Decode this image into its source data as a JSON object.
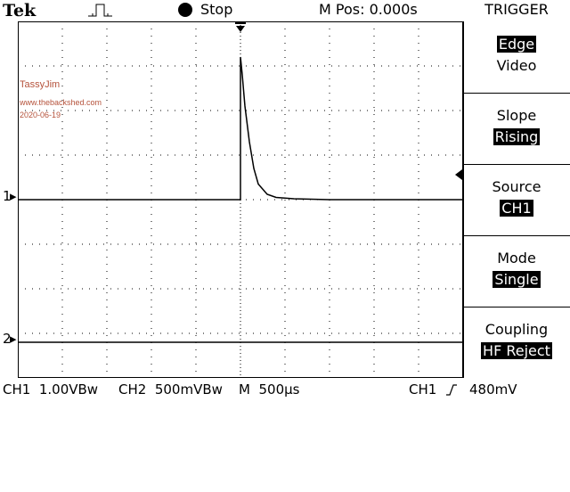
{
  "header": {
    "brand": "Tek",
    "acquisition_icon": "pulse-icon",
    "run_state": "Stop",
    "horizontal_position": "M Pos: 0.000s",
    "menu_title": "TRIGGER"
  },
  "watermark": {
    "author": "TassyJim",
    "site": "www.thebackshed.com",
    "date": "2020-06-19"
  },
  "channel_markers": {
    "ch1": "1",
    "ch2": "2"
  },
  "trigger_menu": {
    "items": [
      {
        "label": "Edge",
        "value": "Video"
      },
      {
        "label": "Slope",
        "value": "Rising"
      },
      {
        "label": "Source",
        "value": "CH1"
      },
      {
        "label": "Mode",
        "value": "Single"
      },
      {
        "label": "Coupling",
        "value": "HF Reject"
      }
    ]
  },
  "status_bar": {
    "ch1_scale": "CH1  1.00VBw",
    "ch2_scale": "CH2  500mVBw",
    "timebase": "M  500µs",
    "trigger_source": "CH1",
    "trigger_slope_icon": "rising-edge-icon",
    "trigger_level": "480mV"
  },
  "colors": {
    "background": "#ffffff",
    "trace": "#000000",
    "watermark": "#b5523b"
  },
  "chart_data": {
    "type": "line",
    "grid": true,
    "xlim": [
      -2.5,
      2.5
    ],
    "ylim": [
      -4,
      4
    ],
    "series": [
      {
        "trace": "CH1",
        "x": [
          -2.5,
          0.0,
          0.0,
          0.02,
          0.05,
          0.1,
          0.15,
          0.2,
          0.3,
          0.4,
          0.6,
          1.0,
          2.5
        ],
        "y": [
          0.0,
          0.0,
          3.2,
          2.8,
          2.1,
          1.3,
          0.7,
          0.35,
          0.12,
          0.05,
          0.02,
          0.0,
          0.0
        ]
      },
      {
        "trace": "CH2",
        "x": [
          -2.5,
          2.5
        ],
        "y": [
          -3.2,
          -3.2
        ]
      }
    ]
  }
}
